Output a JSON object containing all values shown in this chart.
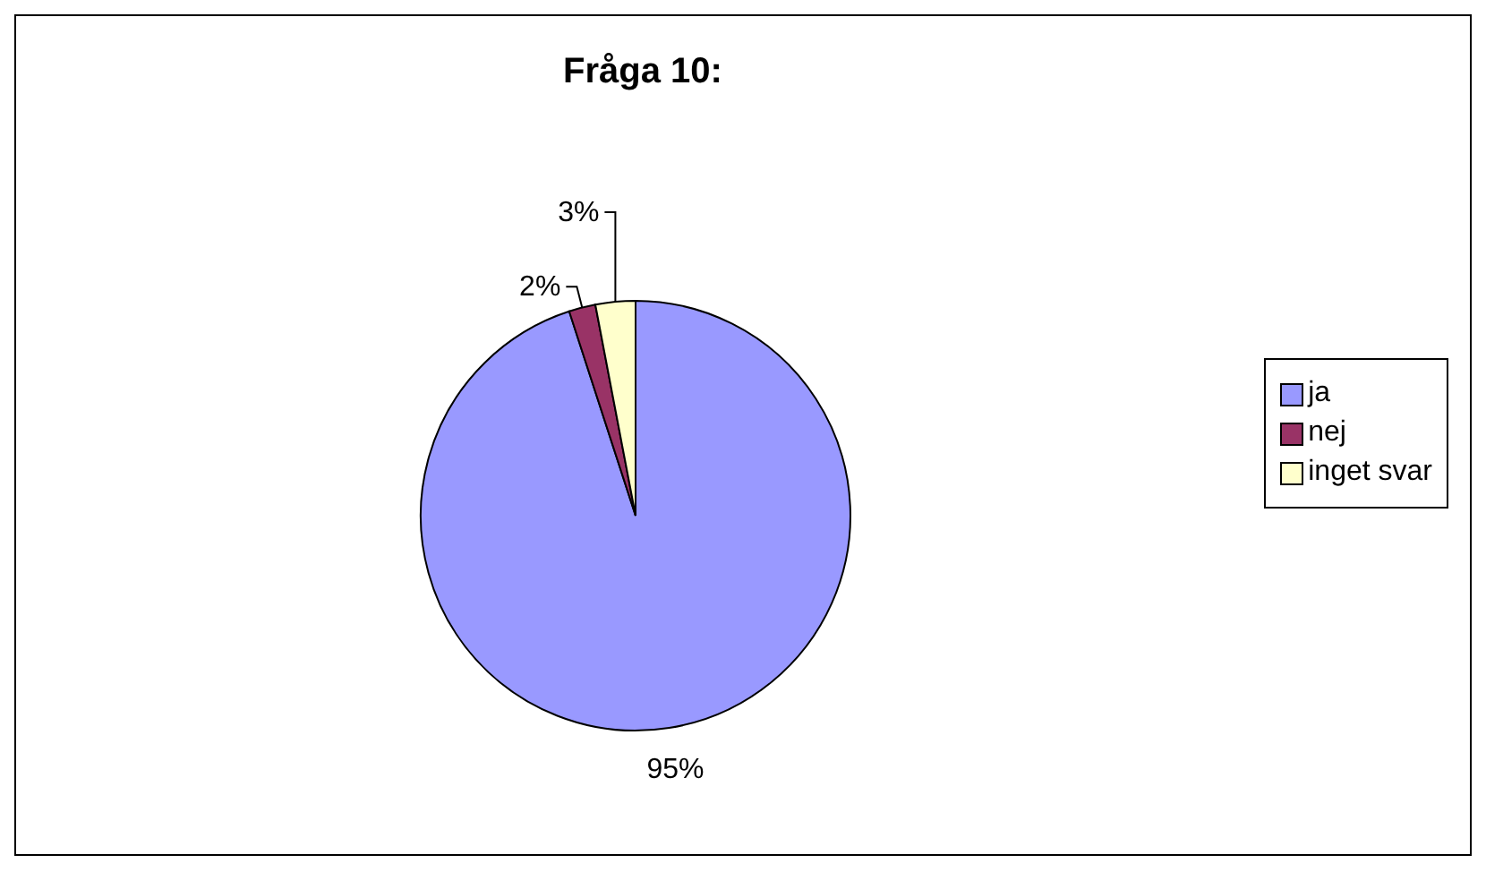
{
  "chart_data": {
    "type": "pie",
    "title": "Fråga 10:",
    "categories": [
      "ja",
      "nej",
      "inget svar"
    ],
    "values": [
      95,
      2,
      3
    ],
    "colors": [
      "#9999ff",
      "#993366",
      "#ffffcc"
    ],
    "value_labels": [
      "95%",
      "2%",
      "3%"
    ],
    "legend": "right"
  }
}
